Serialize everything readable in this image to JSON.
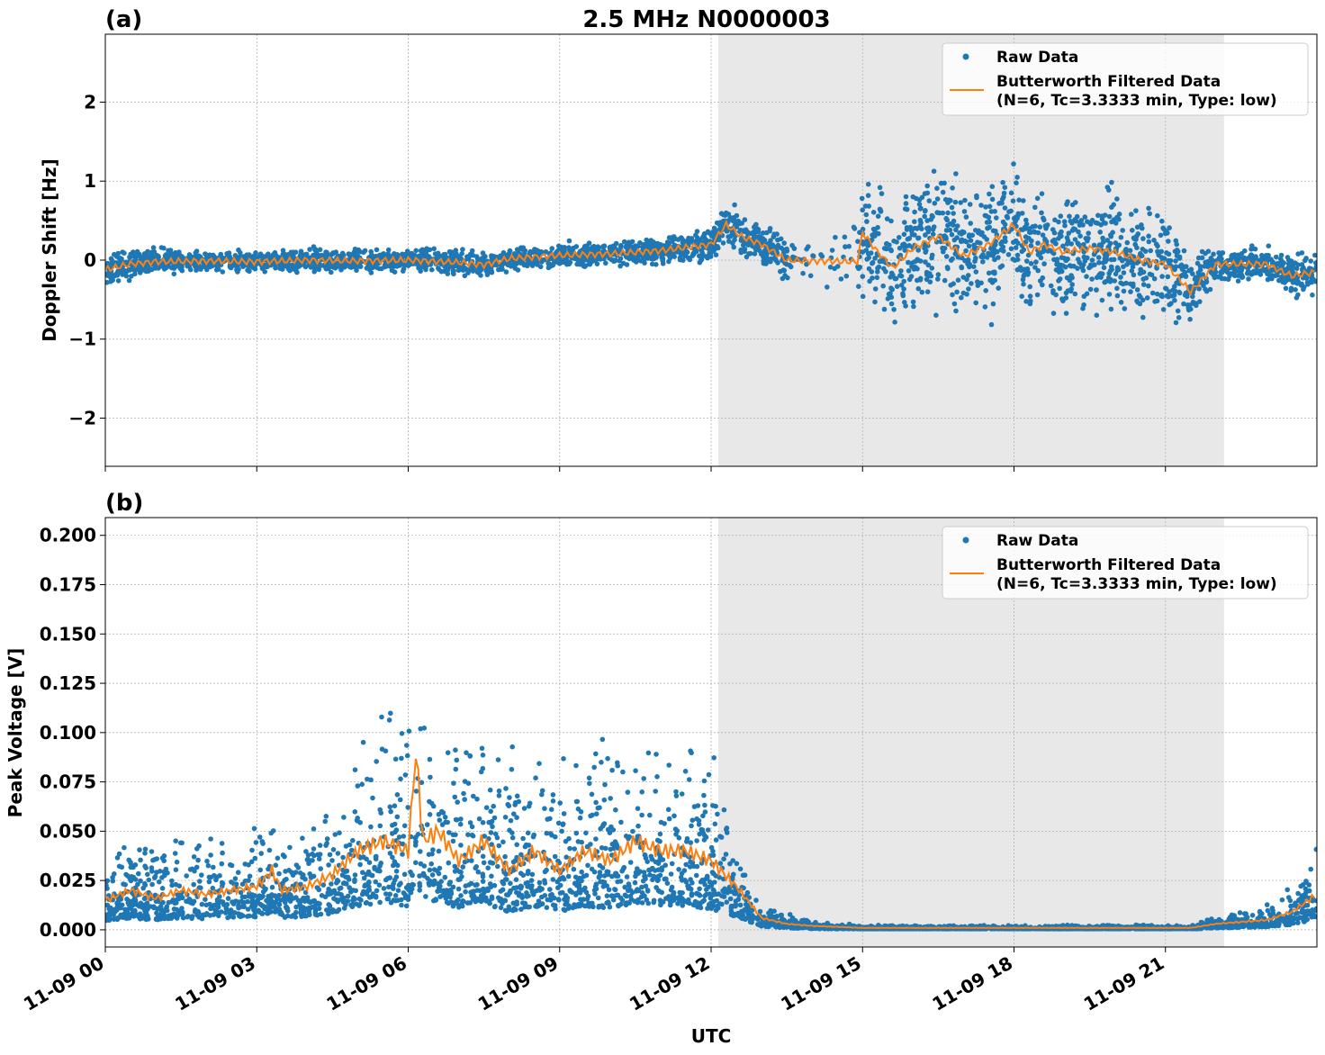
{
  "chart_data": [
    {
      "type": "scatter",
      "panel_label": "(a)",
      "title": "2.5 MHz N0000003",
      "ylabel": "Doppler Shift [Hz]",
      "xlabel": "",
      "xlim_hours_utc": [
        0,
        24
      ],
      "ylim": [
        -2.61,
        2.86
      ],
      "yticks": [
        -2,
        -1,
        0,
        1,
        2
      ],
      "ytick_labels": [
        "−2",
        "−1",
        "0",
        "1",
        "2"
      ],
      "grid": true,
      "legend_placement": "top-right",
      "shaded_interval_hours_utc": [
        12.14,
        22.16
      ],
      "series": [
        {
          "name": "Raw Data",
          "kind": "scatter",
          "color": "#1f77b4",
          "envelope_hours": [
            0,
            1,
            2,
            3,
            4,
            5,
            6,
            7,
            8,
            9,
            10,
            11,
            12,
            12.5,
            13,
            13.5,
            14,
            15,
            16,
            17,
            18,
            19,
            20,
            21,
            21.5,
            22,
            23,
            24
          ],
          "envelope_halfwidth": [
            0.25,
            0.2,
            0.18,
            0.18,
            0.2,
            0.2,
            0.18,
            0.22,
            0.2,
            0.2,
            0.2,
            0.22,
            0.3,
            0.4,
            0.35,
            0.35,
            0.35,
            1.0,
            1.1,
            1.1,
            1.1,
            1.0,
            1.0,
            1.0,
            0.6,
            0.3,
            0.3,
            0.35
          ]
        },
        {
          "name": "Butterworth Filtered Data",
          "name_line2": "(N=6, Tc=3.3333 min, Type: low)",
          "kind": "line",
          "color": "#ff7f0e",
          "x_hours": [
            0,
            0.5,
            1,
            2,
            3,
            4,
            5,
            6,
            7,
            7.5,
            8,
            9,
            10,
            11,
            12,
            12.3,
            12.6,
            13,
            13.5,
            14,
            14.9,
            15,
            15.3,
            15.6,
            16,
            16.5,
            17,
            17.5,
            18,
            18.3,
            18.6,
            19,
            19.5,
            20,
            20.5,
            21,
            21.5,
            22,
            23,
            23.5,
            24
          ],
          "y": [
            -0.12,
            -0.05,
            -0.02,
            -0.01,
            -0.02,
            0.0,
            -0.01,
            0.0,
            -0.03,
            -0.06,
            0.02,
            0.06,
            0.08,
            0.12,
            0.2,
            0.45,
            0.3,
            0.2,
            0.0,
            -0.01,
            -0.02,
            0.35,
            0.1,
            -0.1,
            0.15,
            0.3,
            0.05,
            0.2,
            0.45,
            0.1,
            0.2,
            0.1,
            0.15,
            0.1,
            0.0,
            -0.05,
            -0.4,
            -0.05,
            -0.05,
            -0.2,
            -0.15
          ]
        }
      ]
    },
    {
      "type": "scatter",
      "panel_label": "(b)",
      "ylabel": "Peak Voltage [V]",
      "xlabel": "UTC",
      "xlim_hours_utc": [
        0,
        24
      ],
      "ylim": [
        -0.0087,
        0.209
      ],
      "yticks": [
        0,
        0.025,
        0.05,
        0.075,
        0.1,
        0.125,
        0.15,
        0.175,
        0.2
      ],
      "ytick_labels": [
        "0.000",
        "0.025",
        "0.050",
        "0.075",
        "0.100",
        "0.125",
        "0.150",
        "0.175",
        "0.200"
      ],
      "xtick_labels": [
        "11-09 00",
        "11-09 03",
        "11-09 06",
        "11-09 09",
        "11-09 12",
        "11-09 15",
        "11-09 18",
        "11-09 21"
      ],
      "xticks_hours": [
        0,
        3,
        6,
        9,
        12,
        15,
        18,
        21
      ],
      "grid": true,
      "legend_placement": "top-right",
      "shaded_interval_hours_utc": [
        12.14,
        22.16
      ],
      "series": [
        {
          "name": "Raw Data",
          "kind": "scatter",
          "color": "#1f77b4",
          "envelope_hours": [
            0,
            1,
            2,
            3,
            4,
            4.5,
            5,
            6,
            7,
            8,
            9,
            10,
            11,
            12,
            12.5,
            13,
            14,
            15,
            21.5,
            22,
            23,
            23.5,
            24
          ],
          "envelope_max": [
            0.035,
            0.04,
            0.04,
            0.045,
            0.045,
            0.06,
            0.08,
            0.1,
            0.08,
            0.075,
            0.08,
            0.085,
            0.08,
            0.08,
            0.04,
            0.01,
            0.004,
            0.002,
            0.002,
            0.006,
            0.01,
            0.018,
            0.04
          ]
        },
        {
          "name": "Butterworth Filtered Data",
          "name_line2": "(N=6, Tc=3.3333 min, Type: low)",
          "kind": "line",
          "color": "#ff7f0e",
          "x_hours": [
            0,
            0.5,
            1,
            1.5,
            2,
            2.5,
            3,
            3.3,
            3.5,
            4,
            4.5,
            5,
            5.5,
            6,
            6.15,
            6.3,
            6.6,
            7,
            7.5,
            8,
            8.5,
            9,
            9.5,
            10,
            10.5,
            11,
            11.5,
            12,
            12.5,
            13,
            13.5,
            14,
            15,
            21.5,
            22,
            23,
            23.5,
            24
          ],
          "y": [
            0.015,
            0.02,
            0.016,
            0.02,
            0.018,
            0.02,
            0.022,
            0.03,
            0.02,
            0.022,
            0.028,
            0.04,
            0.045,
            0.04,
            0.09,
            0.045,
            0.05,
            0.035,
            0.045,
            0.03,
            0.04,
            0.03,
            0.04,
            0.035,
            0.045,
            0.04,
            0.04,
            0.035,
            0.022,
            0.006,
            0.003,
            0.002,
            0.001,
            0.001,
            0.003,
            0.005,
            0.009,
            0.018
          ]
        }
      ]
    }
  ]
}
